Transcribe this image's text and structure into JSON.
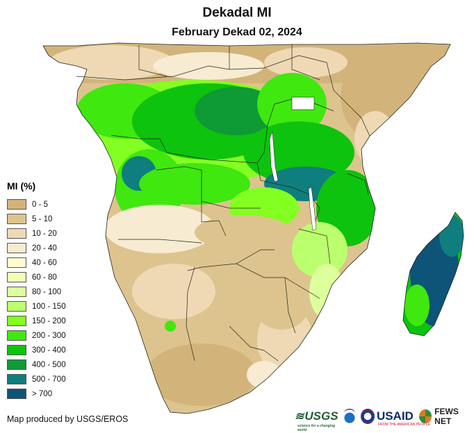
{
  "header": {
    "title": "Dekadal MI",
    "subtitle": "February Dekad 02, 2024"
  },
  "legend": {
    "title": "MI (%)",
    "items": [
      {
        "label": "0 - 5",
        "color": "#d2b47a"
      },
      {
        "label": "5 - 10",
        "color": "#ddc48e"
      },
      {
        "label": "10 - 20",
        "color": "#eed9b4"
      },
      {
        "label": "20 - 40",
        "color": "#f7ebd2"
      },
      {
        "label": "40 - 60",
        "color": "#fffdd0"
      },
      {
        "label": "60 - 80",
        "color": "#f4ffb4"
      },
      {
        "label": "80 - 100",
        "color": "#ddff9c"
      },
      {
        "label": "100 - 150",
        "color": "#bcff6e"
      },
      {
        "label": "150 - 200",
        "color": "#84ff22"
      },
      {
        "label": "200 - 300",
        "color": "#3fe80e"
      },
      {
        "label": "300 - 400",
        "color": "#0dc30d"
      },
      {
        "label": "400 - 500",
        "color": "#0e9a35"
      },
      {
        "label": "500 - 700",
        "color": "#0e7e7e"
      },
      {
        "label": "> 700",
        "color": "#0d5478"
      }
    ]
  },
  "footer": {
    "credit": "Map produced by USGS/EROS",
    "logos": {
      "usgs": "USGS",
      "usgs_tagline": "science for a changing world",
      "usaid": "USAID",
      "usaid_tagline": "FROM THE AMERICAN PEOPLE",
      "fews": "FEWS NET"
    }
  },
  "colors": {
    "ocean": "#ffffff",
    "border": "#222222"
  }
}
